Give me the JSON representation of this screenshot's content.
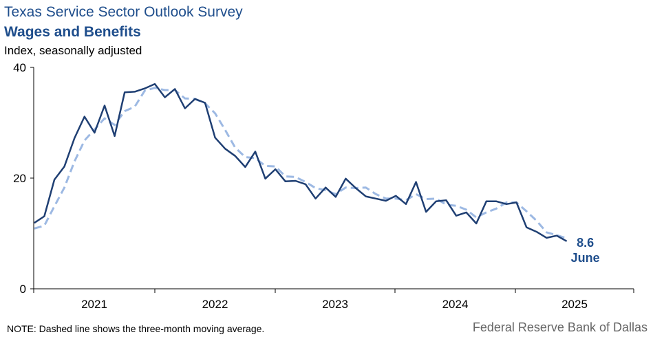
{
  "header": {
    "title": "Texas Service Sector Outlook Survey",
    "subtitle": "Wages and Benefits",
    "ylabel": "Index, seasonally adjusted"
  },
  "footer": {
    "note": "NOTE: Dashed line shows the three-month  moving average.",
    "source": "Federal Reserve Bank of Dallas"
  },
  "annotation": {
    "value": "8.6",
    "label": "June"
  },
  "colors": {
    "series": "#1f3f73",
    "moving_average": "#9db9e3",
    "text_accent": "#1f4e8c"
  },
  "chart_data": {
    "type": "line",
    "title": "Wages and Benefits",
    "ylabel": "Index, seasonally adjusted",
    "ylim": [
      0,
      40
    ],
    "yticks": [
      0,
      20,
      40
    ],
    "year_labels": [
      "2021",
      "2022",
      "2023",
      "2024",
      "2025"
    ],
    "x_start": "2020-08",
    "x_end": "2025-06",
    "grid": false,
    "series": [
      {
        "style": "solid",
        "values": [
          11.9,
          13.1,
          19.7,
          22.1,
          27.2,
          31.1,
          28.2,
          33.1,
          27.6,
          35.5,
          35.6,
          36.2,
          37.0,
          34.6,
          36.1,
          32.6,
          34.3,
          33.6,
          27.3,
          25.3,
          24.0,
          22.0,
          24.8,
          19.9,
          21.6,
          19.4,
          19.5,
          18.9,
          16.3,
          18.3,
          16.6,
          19.9,
          18.2,
          16.7,
          16.3,
          15.9,
          16.8,
          15.3,
          19.3,
          13.9,
          15.8,
          16.0,
          13.2,
          13.8,
          11.8,
          15.8,
          15.8,
          15.3,
          15.6,
          11.1,
          10.3,
          9.2,
          9.6,
          8.6
        ]
      },
      {
        "style": "dashed",
        "values": [
          10.9,
          11.4,
          14.9,
          18.3,
          23.0,
          26.8,
          28.8,
          30.8,
          29.6,
          32.1,
          32.9,
          35.8,
          36.3,
          35.9,
          35.9,
          34.4,
          34.3,
          33.5,
          31.7,
          28.7,
          25.5,
          23.8,
          23.6,
          22.2,
          22.1,
          20.3,
          20.2,
          19.3,
          18.2,
          17.8,
          17.1,
          18.3,
          18.2,
          18.3,
          17.1,
          16.3,
          16.3,
          16.0,
          17.1,
          16.2,
          16.3,
          15.2,
          15.0,
          14.3,
          12.9,
          13.8,
          14.5,
          15.6,
          15.6,
          14.0,
          12.3,
          10.2,
          9.7,
          9.1
        ]
      }
    ]
  }
}
